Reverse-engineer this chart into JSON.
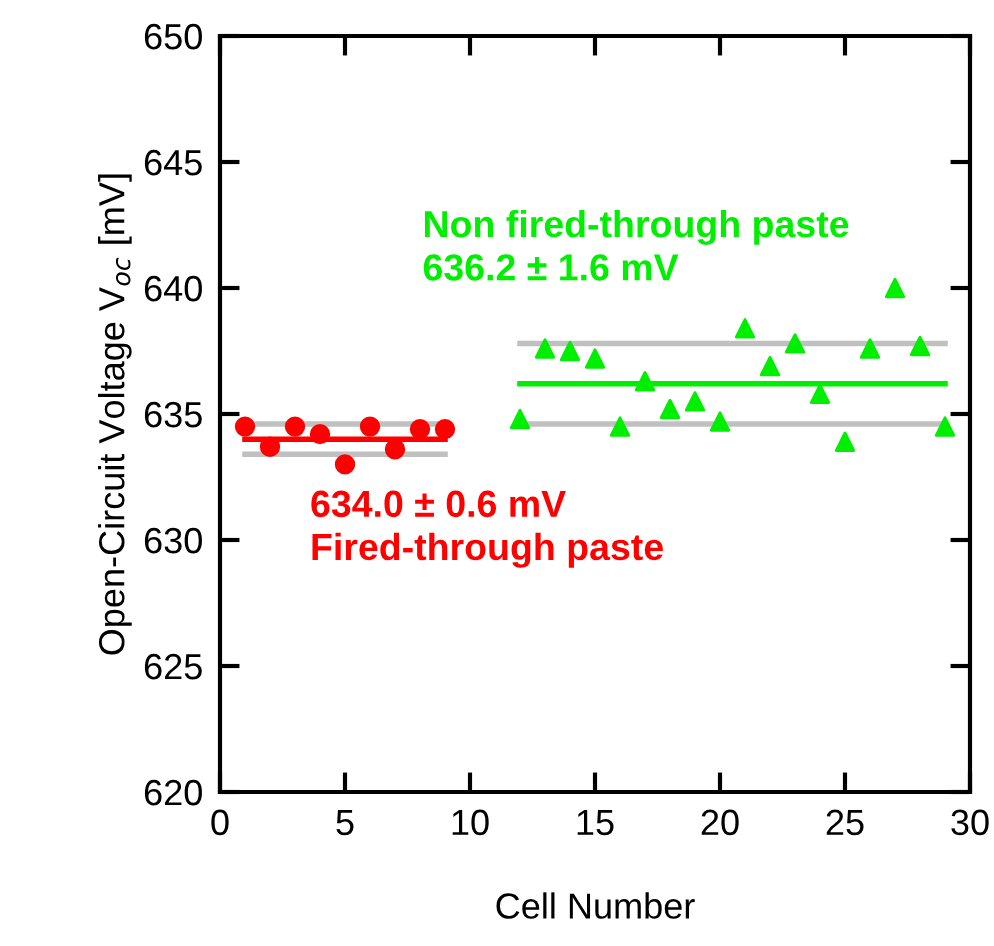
{
  "chart_data": {
    "type": "scatter",
    "xlabel": "Cell Number",
    "ylabel": "Open-Circuit Voltage V$_{oc}$ [mV]",
    "xlim": [
      0,
      30
    ],
    "xticks": [
      0,
      5,
      10,
      15,
      20,
      25,
      30
    ],
    "ylim": [
      620,
      650
    ],
    "yticks": [
      620,
      625,
      630,
      635,
      640,
      645,
      650
    ],
    "grid": false,
    "legend": false,
    "series": [
      {
        "marker": "circle",
        "color": "#ff0000",
        "x": [
          1,
          2,
          3,
          4,
          5,
          6,
          7,
          8,
          9
        ],
        "values": [
          634.5,
          633.7,
          634.5,
          634.2,
          633.0,
          634.5,
          633.6,
          634.4,
          634.4
        ]
      },
      {
        "marker": "triangle",
        "color": "#00ee00",
        "x": [
          12,
          13,
          14,
          15,
          16,
          17,
          18,
          19,
          20,
          21,
          22,
          23,
          24,
          25,
          26,
          27,
          28,
          29
        ],
        "values": [
          634.8,
          637.6,
          637.5,
          637.2,
          634.5,
          636.3,
          635.2,
          635.5,
          634.7,
          638.4,
          636.9,
          637.8,
          635.8,
          633.9,
          637.6,
          640.0,
          637.7,
          634.5
        ]
      },
      {
        "type": "line",
        "marker": "none",
        "color": "#ff0000",
        "x": [
          1,
          9
        ],
        "values": [
          634.0,
          634.0
        ]
      },
      {
        "type": "line",
        "marker": "none",
        "color": "#c0c0c0",
        "x": [
          1,
          9
        ],
        "values": [
          634.6,
          634.6
        ]
      },
      {
        "type": "line",
        "marker": "none",
        "color": "#c0c0c0",
        "x": [
          1,
          9
        ],
        "values": [
          633.4,
          633.4
        ]
      },
      {
        "type": "line",
        "marker": "none",
        "color": "#00ee00",
        "x": [
          12,
          29
        ],
        "values": [
          636.2,
          636.2
        ]
      },
      {
        "type": "line",
        "marker": "none",
        "color": "#c0c0c0",
        "x": [
          12,
          29
        ],
        "values": [
          637.8,
          637.8
        ]
      },
      {
        "type": "line",
        "marker": "none",
        "color": "#c0c0c0",
        "x": [
          12,
          29
        ],
        "values": [
          634.6,
          634.6
        ]
      }
    ],
    "annotations": [
      "634.0 ± 0.6 mV\nFired-through paste",
      "Non fired-through paste\n636.2 ± 1.6 mV"
    ]
  }
}
